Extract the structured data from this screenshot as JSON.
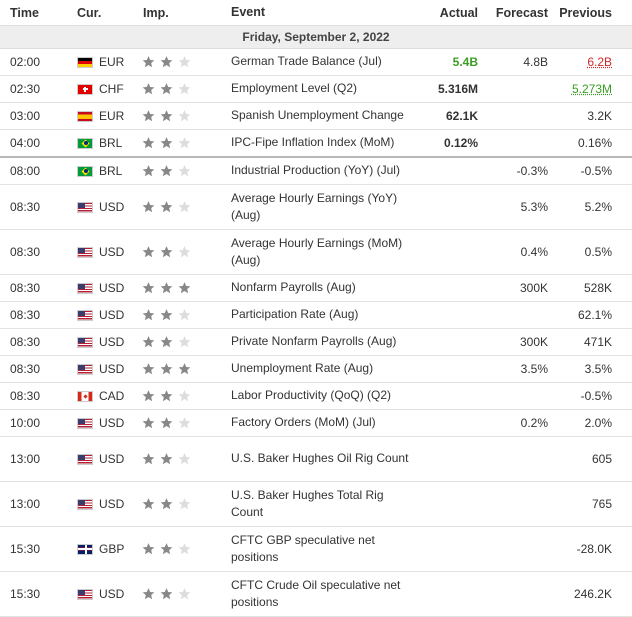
{
  "header": {
    "time": "Time",
    "cur": "Cur.",
    "imp": "Imp.",
    "event": "Event",
    "actual": "Actual",
    "forecast": "Forecast",
    "previous": "Previous"
  },
  "date_label": "Friday, September 2, 2022",
  "colors": {
    "positive": "#3a9d23",
    "negative": "#d3262b",
    "star_filled": "#888888",
    "star_empty": "#dddddd"
  },
  "rows": [
    {
      "time": "02:00",
      "cur": "EUR",
      "flag": "germany-flag-icon",
      "importance": 2,
      "event": "German Trade Balance (Jul)",
      "actual": "5.4B",
      "actual_color": "green",
      "forecast": "4.8B",
      "previous": "6.2B",
      "previous_color": "red"
    },
    {
      "time": "02:30",
      "cur": "CHF",
      "flag": "switzerland-flag-icon",
      "importance": 2,
      "event": "Employment Level (Q2)",
      "actual": "5.316M",
      "forecast": "",
      "previous": "5.273M",
      "previous_color": "green"
    },
    {
      "time": "03:00",
      "cur": "EUR",
      "flag": "spain-flag-icon",
      "importance": 2,
      "event": "Spanish Unemployment Change",
      "actual": "62.1K",
      "forecast": "",
      "previous": "3.2K"
    },
    {
      "time": "04:00",
      "cur": "BRL",
      "flag": "brazil-flag-icon",
      "importance": 2,
      "event": "IPC-Fipe Inflation Index (MoM)",
      "actual": "0.12%",
      "forecast": "",
      "previous": "0.16%"
    },
    {
      "time": "08:00",
      "cur": "BRL",
      "flag": "brazil-flag-icon",
      "importance": 2,
      "event": "Industrial Production (YoY) (Jul)",
      "actual": "",
      "forecast": "-0.3%",
      "previous": "-0.5%"
    },
    {
      "time": "08:30",
      "cur": "USD",
      "flag": "usa-flag-icon",
      "importance": 2,
      "event": "Average Hourly Earnings (YoY) (Aug)",
      "actual": "",
      "forecast": "5.3%",
      "previous": "5.2%"
    },
    {
      "time": "08:30",
      "cur": "USD",
      "flag": "usa-flag-icon",
      "importance": 2,
      "event": "Average Hourly Earnings (MoM) (Aug)",
      "actual": "",
      "forecast": "0.4%",
      "previous": "0.5%"
    },
    {
      "time": "08:30",
      "cur": "USD",
      "flag": "usa-flag-icon",
      "importance": 3,
      "event": "Nonfarm Payrolls (Aug)",
      "actual": "",
      "forecast": "300K",
      "previous": "528K"
    },
    {
      "time": "08:30",
      "cur": "USD",
      "flag": "usa-flag-icon",
      "importance": 2,
      "event": "Participation Rate (Aug)",
      "actual": "",
      "forecast": "",
      "previous": "62.1%"
    },
    {
      "time": "08:30",
      "cur": "USD",
      "flag": "usa-flag-icon",
      "importance": 2,
      "event": "Private Nonfarm Payrolls (Aug)",
      "actual": "",
      "forecast": "300K",
      "previous": "471K"
    },
    {
      "time": "08:30",
      "cur": "USD",
      "flag": "usa-flag-icon",
      "importance": 3,
      "event": "Unemployment Rate (Aug)",
      "actual": "",
      "forecast": "3.5%",
      "previous": "3.5%"
    },
    {
      "time": "08:30",
      "cur": "CAD",
      "flag": "canada-flag-icon",
      "importance": 2,
      "event": "Labor Productivity (QoQ) (Q2)",
      "actual": "",
      "forecast": "",
      "previous": "-0.5%"
    },
    {
      "time": "10:00",
      "cur": "USD",
      "flag": "usa-flag-icon",
      "importance": 2,
      "event": "Factory Orders (MoM) (Jul)",
      "actual": "",
      "forecast": "0.2%",
      "previous": "2.0%"
    },
    {
      "time": "13:00",
      "cur": "USD",
      "flag": "usa-flag-icon",
      "importance": 2,
      "event": "U.S. Baker Hughes Oil Rig Count",
      "actual": "",
      "forecast": "",
      "previous": "605"
    },
    {
      "time": "13:00",
      "cur": "USD",
      "flag": "usa-flag-icon",
      "importance": 2,
      "event": "U.S. Baker Hughes Total Rig Count",
      "actual": "",
      "forecast": "",
      "previous": "765"
    },
    {
      "time": "15:30",
      "cur": "GBP",
      "flag": "uk-flag-icon",
      "importance": 2,
      "event": "CFTC GBP speculative net positions",
      "actual": "",
      "forecast": "",
      "previous": "-28.0K"
    },
    {
      "time": "15:30",
      "cur": "USD",
      "flag": "usa-flag-icon",
      "importance": 2,
      "event": "CFTC Crude Oil speculative net positions",
      "actual": "",
      "forecast": "",
      "previous": "246.2K"
    }
  ]
}
